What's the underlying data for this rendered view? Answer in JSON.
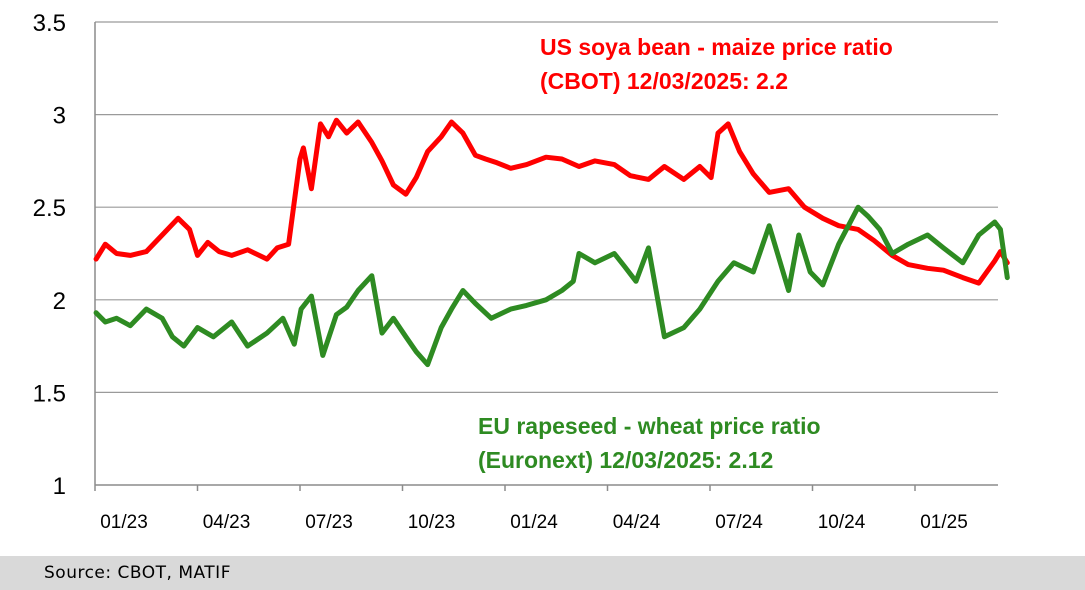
{
  "chart_data": {
    "type": "line",
    "ylim": [
      1,
      3.5
    ],
    "yticks": [
      "1",
      "1.5",
      "2",
      "2.5",
      "3",
      "3.5"
    ],
    "xticks": [
      "01/23",
      "04/23",
      "07/23",
      "10/23",
      "01/24",
      "04/24",
      "07/24",
      "10/24",
      "01/25"
    ],
    "x_start": "2023-01",
    "grid": true,
    "legend": "annotations",
    "annotations": [
      {
        "line1": "US soya bean - maize price ratio",
        "line2": "(CBOT) 12/03/2025: 2.2",
        "color": "#ff0000"
      },
      {
        "line1": "EU rapeseed - wheat price ratio",
        "line2": "(Euronext) 12/03/2025: 2.12",
        "color": "#2e8b22"
      }
    ],
    "series": [
      {
        "color": "#ff0000",
        "x": [
          "2023-01-02",
          "2023-01-10",
          "2023-01-20",
          "2023-02-01",
          "2023-02-15",
          "2023-03-01",
          "2023-03-15",
          "2023-03-25",
          "2023-04-01",
          "2023-04-10",
          "2023-04-20",
          "2023-05-01",
          "2023-05-15",
          "2023-06-01",
          "2023-06-10",
          "2023-06-20",
          "2023-06-30",
          "2023-07-03",
          "2023-07-10",
          "2023-07-18",
          "2023-07-25",
          "2023-08-01",
          "2023-08-10",
          "2023-08-20",
          "2023-09-01",
          "2023-09-10",
          "2023-09-20",
          "2023-10-01",
          "2023-10-10",
          "2023-10-20",
          "2023-11-01",
          "2023-11-10",
          "2023-11-20",
          "2023-12-01",
          "2023-12-10",
          "2023-12-20",
          "2024-01-01",
          "2024-01-15",
          "2024-02-01",
          "2024-02-15",
          "2024-03-01",
          "2024-03-15",
          "2024-04-01",
          "2024-04-15",
          "2024-05-01",
          "2024-05-15",
          "2024-06-01",
          "2024-06-15",
          "2024-06-25",
          "2024-07-01",
          "2024-07-10",
          "2024-07-20",
          "2024-08-01",
          "2024-08-15",
          "2024-09-01",
          "2024-09-15",
          "2024-10-01",
          "2024-10-15",
          "2024-11-01",
          "2024-11-15",
          "2024-12-01",
          "2024-12-15",
          "2025-01-01",
          "2025-01-15",
          "2025-02-01",
          "2025-02-15",
          "2025-03-01",
          "2025-03-06",
          "2025-03-12"
        ],
        "values": [
          2.22,
          2.3,
          2.25,
          2.24,
          2.26,
          2.35,
          2.44,
          2.38,
          2.24,
          2.31,
          2.26,
          2.24,
          2.27,
          2.22,
          2.28,
          2.3,
          2.76,
          2.82,
          2.6,
          2.95,
          2.88,
          2.97,
          2.9,
          2.96,
          2.85,
          2.75,
          2.62,
          2.57,
          2.66,
          2.8,
          2.88,
          2.96,
          2.9,
          2.78,
          2.76,
          2.74,
          2.71,
          2.73,
          2.77,
          2.76,
          2.72,
          2.75,
          2.73,
          2.67,
          2.65,
          2.72,
          2.65,
          2.72,
          2.66,
          2.9,
          2.95,
          2.8,
          2.68,
          2.58,
          2.6,
          2.5,
          2.44,
          2.4,
          2.38,
          2.32,
          2.24,
          2.19,
          2.17,
          2.16,
          2.12,
          2.09,
          2.21,
          2.26,
          2.2
        ]
      },
      {
        "color": "#2e8b22",
        "x": [
          "2023-01-02",
          "2023-01-10",
          "2023-01-20",
          "2023-02-01",
          "2023-02-15",
          "2023-03-01",
          "2023-03-10",
          "2023-03-20",
          "2023-04-01",
          "2023-04-15",
          "2023-05-01",
          "2023-05-15",
          "2023-06-01",
          "2023-06-15",
          "2023-06-25",
          "2023-07-01",
          "2023-07-10",
          "2023-07-20",
          "2023-08-01",
          "2023-08-10",
          "2023-08-20",
          "2023-09-01",
          "2023-09-10",
          "2023-09-20",
          "2023-10-01",
          "2023-10-10",
          "2023-10-20",
          "2023-11-01",
          "2023-11-10",
          "2023-11-20",
          "2023-12-01",
          "2023-12-15",
          "2024-01-01",
          "2024-01-15",
          "2024-02-01",
          "2024-02-15",
          "2024-02-25",
          "2024-03-01",
          "2024-03-15",
          "2024-04-01",
          "2024-04-10",
          "2024-04-20",
          "2024-05-01",
          "2024-05-15",
          "2024-06-01",
          "2024-06-15",
          "2024-07-01",
          "2024-07-15",
          "2024-08-01",
          "2024-08-15",
          "2024-09-01",
          "2024-09-10",
          "2024-09-20",
          "2024-10-01",
          "2024-10-15",
          "2024-11-01",
          "2024-11-10",
          "2024-11-20",
          "2024-12-01",
          "2024-12-15",
          "2025-01-01",
          "2025-01-15",
          "2025-02-01",
          "2025-02-15",
          "2025-03-01",
          "2025-03-06",
          "2025-03-12"
        ],
        "values": [
          1.93,
          1.88,
          1.9,
          1.86,
          1.95,
          1.9,
          1.8,
          1.75,
          1.85,
          1.8,
          1.88,
          1.75,
          1.82,
          1.9,
          1.76,
          1.95,
          2.02,
          1.7,
          1.92,
          1.96,
          2.05,
          2.13,
          1.82,
          1.9,
          1.8,
          1.72,
          1.65,
          1.85,
          1.95,
          2.05,
          1.98,
          1.9,
          1.95,
          1.97,
          2.0,
          2.05,
          2.1,
          2.25,
          2.2,
          2.25,
          2.18,
          2.1,
          2.28,
          1.8,
          1.85,
          1.95,
          2.1,
          2.2,
          2.15,
          2.4,
          2.05,
          2.35,
          2.15,
          2.08,
          2.3,
          2.5,
          2.45,
          2.38,
          2.25,
          2.3,
          2.35,
          2.28,
          2.2,
          2.35,
          2.42,
          2.38,
          2.12
        ]
      }
    ]
  },
  "footer": {
    "source": "Source: CBOT, MATIF"
  }
}
